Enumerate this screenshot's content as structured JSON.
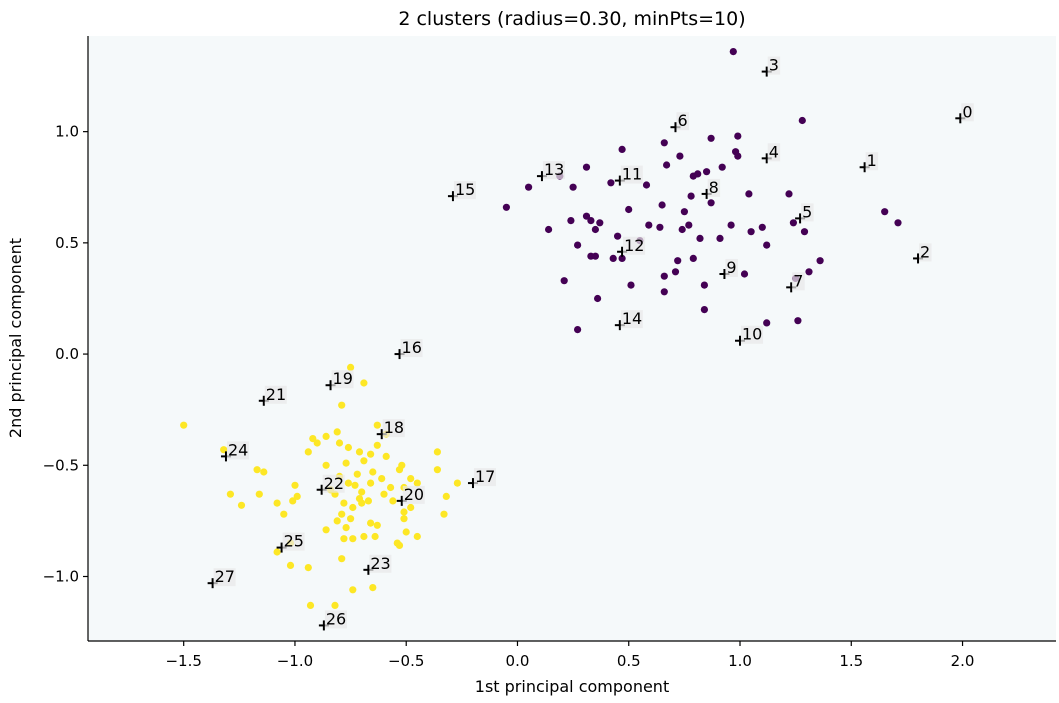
{
  "chart_data": {
    "type": "scatter",
    "title": "2 clusters (radius=0.30, minPts=10)",
    "xlabel": "1st principal component",
    "ylabel": "2nd principal component",
    "xlim": [
      -1.93,
      2.42
    ],
    "ylim": [
      -1.29,
      1.43
    ],
    "xticks": [
      -1.5,
      -1.0,
      -0.5,
      0.0,
      0.5,
      1.0,
      1.5,
      2.0
    ],
    "xtick_labels": [
      "−1.5",
      "−1.0",
      "−0.5",
      "0.0",
      "0.5",
      "1.0",
      "1.5",
      "2.0"
    ],
    "yticks": [
      -1.0,
      -0.5,
      0.0,
      0.5,
      1.0
    ],
    "ytick_labels": [
      "−1.0",
      "−0.5",
      "0.0",
      "0.5",
      "1.0"
    ],
    "grid": false,
    "plot_background": "#f5f9fa",
    "cluster_colors": [
      "#440154",
      "#fde725"
    ],
    "series": [
      {
        "cluster": 0,
        "color": "#440154",
        "points": [
          [
            0.97,
            1.36
          ],
          [
            1.28,
            1.05
          ],
          [
            0.99,
            0.98
          ],
          [
            0.87,
            0.97
          ],
          [
            0.66,
            0.95
          ],
          [
            0.98,
            0.91
          ],
          [
            0.47,
            0.92
          ],
          [
            0.99,
            0.89
          ],
          [
            0.73,
            0.89
          ],
          [
            0.67,
            0.85
          ],
          [
            0.31,
            0.84
          ],
          [
            0.92,
            0.84
          ],
          [
            0.85,
            0.82
          ],
          [
            0.81,
            0.81
          ],
          [
            0.79,
            0.8
          ],
          [
            0.19,
            0.8
          ],
          [
            0.58,
            0.76
          ],
          [
            0.05,
            0.75
          ],
          [
            0.25,
            0.75
          ],
          [
            0.42,
            0.77
          ],
          [
            0.78,
            0.71
          ],
          [
            1.04,
            0.72
          ],
          [
            1.22,
            0.72
          ],
          [
            0.87,
            0.68
          ],
          [
            0.65,
            0.67
          ],
          [
            -0.05,
            0.66
          ],
          [
            0.5,
            0.65
          ],
          [
            0.75,
            0.64
          ],
          [
            0.31,
            0.62
          ],
          [
            0.33,
            0.6
          ],
          [
            0.24,
            0.6
          ],
          [
            0.37,
            0.59
          ],
          [
            0.59,
            0.58
          ],
          [
            0.64,
            0.57
          ],
          [
            0.77,
            0.58
          ],
          [
            0.96,
            0.58
          ],
          [
            1.1,
            0.57
          ],
          [
            0.35,
            0.56
          ],
          [
            1.24,
            0.59
          ],
          [
            1.29,
            0.55
          ],
          [
            0.14,
            0.56
          ],
          [
            0.74,
            0.56
          ],
          [
            1.05,
            0.55
          ],
          [
            1.65,
            0.64
          ],
          [
            1.71,
            0.59
          ],
          [
            0.45,
            0.53
          ],
          [
            0.55,
            0.51
          ],
          [
            0.91,
            0.52
          ],
          [
            0.82,
            0.52
          ],
          [
            1.12,
            0.49
          ],
          [
            0.27,
            0.49
          ],
          [
            1.36,
            0.42
          ],
          [
            0.43,
            0.43
          ],
          [
            0.33,
            0.44
          ],
          [
            0.35,
            0.44
          ],
          [
            0.47,
            0.43
          ],
          [
            0.79,
            0.43
          ],
          [
            0.72,
            0.42
          ],
          [
            0.21,
            0.33
          ],
          [
            1.31,
            0.37
          ],
          [
            0.66,
            0.35
          ],
          [
            0.71,
            0.37
          ],
          [
            1.02,
            0.36
          ],
          [
            1.25,
            0.34
          ],
          [
            0.51,
            0.31
          ],
          [
            0.84,
            0.31
          ],
          [
            0.66,
            0.28
          ],
          [
            0.36,
            0.25
          ],
          [
            0.84,
            0.2
          ],
          [
            1.26,
            0.15
          ],
          [
            1.12,
            0.14
          ],
          [
            0.27,
            0.11
          ]
        ]
      },
      {
        "cluster": 1,
        "color": "#fde725",
        "points": [
          [
            -0.75,
            -0.06
          ],
          [
            -0.69,
            -0.13
          ],
          [
            -0.79,
            -0.23
          ],
          [
            -1.5,
            -0.32
          ],
          [
            -0.63,
            -0.32
          ],
          [
            -0.81,
            -0.35
          ],
          [
            -0.59,
            -0.36
          ],
          [
            -0.86,
            -0.37
          ],
          [
            -0.92,
            -0.38
          ],
          [
            -0.9,
            -0.4
          ],
          [
            -0.8,
            -0.4
          ],
          [
            -0.76,
            -0.42
          ],
          [
            -0.63,
            -0.41
          ],
          [
            -0.94,
            -0.44
          ],
          [
            -0.71,
            -0.44
          ],
          [
            -0.66,
            -0.45
          ],
          [
            -1.32,
            -0.43
          ],
          [
            -0.36,
            -0.44
          ],
          [
            -0.59,
            -0.46
          ],
          [
            -0.69,
            -0.48
          ],
          [
            -0.77,
            -0.49
          ],
          [
            -0.86,
            -0.5
          ],
          [
            -0.52,
            -0.5
          ],
          [
            -0.53,
            -0.52
          ],
          [
            -0.65,
            -0.53
          ],
          [
            -0.36,
            -0.52
          ],
          [
            -1.17,
            -0.52
          ],
          [
            -1.14,
            -0.53
          ],
          [
            -0.72,
            -0.54
          ],
          [
            -0.8,
            -0.55
          ],
          [
            -0.61,
            -0.56
          ],
          [
            -0.48,
            -0.56
          ],
          [
            -0.66,
            -0.58
          ],
          [
            -1.0,
            -0.59
          ],
          [
            -0.76,
            -0.58
          ],
          [
            -0.73,
            -0.59
          ],
          [
            -0.51,
            -0.6
          ],
          [
            -0.84,
            -0.61
          ],
          [
            -0.57,
            -0.6
          ],
          [
            -0.45,
            -0.58
          ],
          [
            -0.27,
            -0.58
          ],
          [
            -0.82,
            -0.63
          ],
          [
            -0.7,
            -0.62
          ],
          [
            -1.29,
            -0.63
          ],
          [
            -1.16,
            -0.63
          ],
          [
            -0.99,
            -0.64
          ],
          [
            -0.6,
            -0.63
          ],
          [
            -0.71,
            -0.65
          ],
          [
            -0.32,
            -0.64
          ],
          [
            -1.01,
            -0.66
          ],
          [
            -0.56,
            -0.66
          ],
          [
            -1.08,
            -0.67
          ],
          [
            -0.78,
            -0.67
          ],
          [
            -0.7,
            -0.67
          ],
          [
            -0.74,
            -0.69
          ],
          [
            -0.67,
            -0.66
          ],
          [
            -1.24,
            -0.68
          ],
          [
            -0.48,
            -0.69
          ],
          [
            -0.79,
            -0.72
          ],
          [
            -0.51,
            -0.71
          ],
          [
            -0.33,
            -0.72
          ],
          [
            -1.05,
            -0.72
          ],
          [
            -0.75,
            -0.74
          ],
          [
            -0.81,
            -0.75
          ],
          [
            -0.51,
            -0.74
          ],
          [
            -0.66,
            -0.76
          ],
          [
            -0.63,
            -0.77
          ],
          [
            -0.77,
            -0.78
          ],
          [
            -0.86,
            -0.79
          ],
          [
            -0.5,
            -0.8
          ],
          [
            -0.45,
            -0.82
          ],
          [
            -0.69,
            -0.82
          ],
          [
            -0.78,
            -0.83
          ],
          [
            -0.74,
            -0.83
          ],
          [
            -0.64,
            -0.82
          ],
          [
            -1.02,
            -0.85
          ],
          [
            -0.54,
            -0.85
          ],
          [
            -0.53,
            -0.86
          ],
          [
            -1.08,
            -0.89
          ],
          [
            -0.79,
            -0.92
          ],
          [
            -1.02,
            -0.95
          ],
          [
            -0.94,
            -0.96
          ],
          [
            -0.65,
            -1.05
          ],
          [
            -0.74,
            -1.06
          ],
          [
            -0.93,
            -1.13
          ],
          [
            -0.82,
            -1.13
          ]
        ]
      }
    ],
    "annotations": [
      {
        "label": "0",
        "x": 1.99,
        "y": 1.06
      },
      {
        "label": "1",
        "x": 1.56,
        "y": 0.84
      },
      {
        "label": "2",
        "x": 1.8,
        "y": 0.43
      },
      {
        "label": "3",
        "x": 1.12,
        "y": 1.27
      },
      {
        "label": "4",
        "x": 1.12,
        "y": 0.88
      },
      {
        "label": "5",
        "x": 1.27,
        "y": 0.61
      },
      {
        "label": "6",
        "x": 0.71,
        "y": 1.02
      },
      {
        "label": "7",
        "x": 1.23,
        "y": 0.3
      },
      {
        "label": "8",
        "x": 0.85,
        "y": 0.72
      },
      {
        "label": "9",
        "x": 0.93,
        "y": 0.36
      },
      {
        "label": "10",
        "x": 1.0,
        "y": 0.06
      },
      {
        "label": "11",
        "x": 0.46,
        "y": 0.78
      },
      {
        "label": "12",
        "x": 0.47,
        "y": 0.46
      },
      {
        "label": "13",
        "x": 0.11,
        "y": 0.8
      },
      {
        "label": "14",
        "x": 0.46,
        "y": 0.13
      },
      {
        "label": "15",
        "x": -0.29,
        "y": 0.71
      },
      {
        "label": "16",
        "x": -0.53,
        "y": 0.0
      },
      {
        "label": "17",
        "x": -0.2,
        "y": -0.58
      },
      {
        "label": "18",
        "x": -0.61,
        "y": -0.36
      },
      {
        "label": "19",
        "x": -0.84,
        "y": -0.14
      },
      {
        "label": "20",
        "x": -0.52,
        "y": -0.66
      },
      {
        "label": "21",
        "x": -1.14,
        "y": -0.21
      },
      {
        "label": "22",
        "x": -0.88,
        "y": -0.61
      },
      {
        "label": "23",
        "x": -0.67,
        "y": -0.97
      },
      {
        "label": "24",
        "x": -1.31,
        "y": -0.46
      },
      {
        "label": "25",
        "x": -1.06,
        "y": -0.87
      },
      {
        "label": "26",
        "x": -0.87,
        "y": -1.22
      },
      {
        "label": "27",
        "x": -1.37,
        "y": -1.03
      }
    ]
  }
}
